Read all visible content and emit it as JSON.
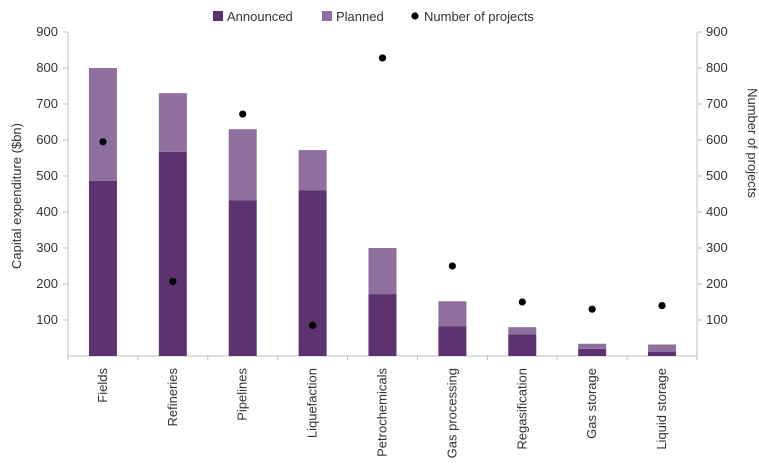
{
  "chart_data": {
    "type": "bar",
    "stacked": true,
    "title": "",
    "categories": [
      "Fields",
      "Refineries",
      "Pipelines",
      "Liquefaction",
      "Petrochemicals",
      "Gas processing",
      "Regasification",
      "Gas storage",
      "Liquid storage"
    ],
    "series": [
      {
        "name": "Announced",
        "axis": "left",
        "kind": "bar",
        "color": "#5c3270",
        "values": [
          487,
          567,
          432,
          460,
          172,
          82,
          60,
          20,
          12
        ]
      },
      {
        "name": "Planned",
        "axis": "left",
        "kind": "bar",
        "color": "#8e6f9e",
        "values": [
          313,
          163,
          198,
          112,
          128,
          70,
          20,
          14,
          20
        ]
      },
      {
        "name": "Number of projects",
        "axis": "right",
        "kind": "scatter",
        "color": "#000000",
        "values": [
          595,
          207,
          672,
          85,
          828,
          250,
          150,
          130,
          140
        ]
      }
    ],
    "ylabel": "Capital expenditure ($bn)",
    "y2label": "Number of projects",
    "ylim": [
      0,
      900
    ],
    "y2lim": [
      0,
      900
    ],
    "yticks": [
      "100",
      "200",
      "300",
      "400",
      "500",
      "600",
      "700",
      "800",
      "900"
    ],
    "y2ticks": [
      "100",
      "200",
      "300",
      "400",
      "500",
      "600",
      "700",
      "800",
      "900"
    ],
    "legend": {
      "position": "top",
      "entries": [
        "Announced",
        "Planned",
        "Number of projects"
      ]
    },
    "grid": false
  }
}
